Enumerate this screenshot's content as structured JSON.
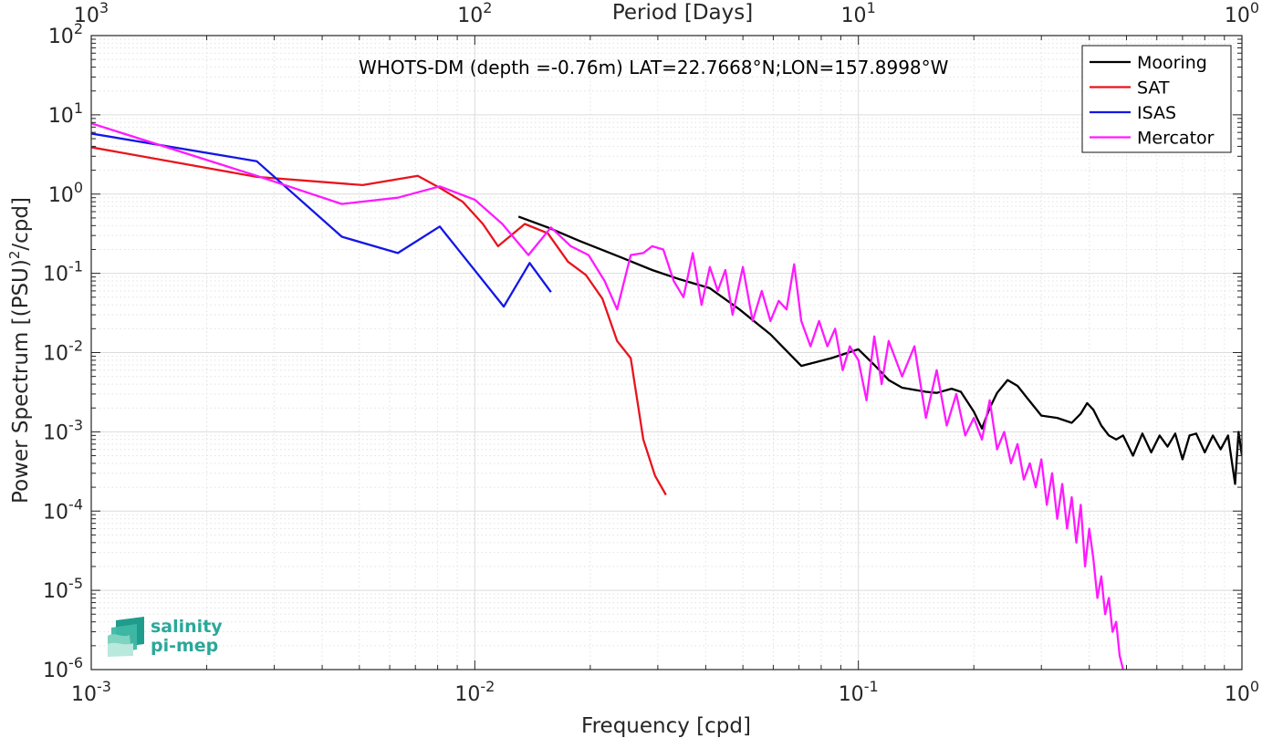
{
  "chart_data": {
    "type": "line",
    "xscale": "log",
    "yscale": "log",
    "xlim": [
      0.001,
      1
    ],
    "ylim": [
      1e-06,
      100
    ],
    "grid": true,
    "minor_grid": true,
    "xlabel": "Frequency [cpd]",
    "ylabel_main": "Power Spectrum [(PSU)",
    "ylabel_sup": "2",
    "ylabel_tail": "/cpd]",
    "top_xlabel": "Period [Days]",
    "annotation": "WHOTS-DM (depth =-0.76m) LAT=22.7668°N;LON=157.8998°W",
    "legend_position": "top-right",
    "x_ticks": [
      0.001,
      0.01,
      0.1,
      1
    ],
    "x_tick_base": [
      "10",
      "10",
      "10",
      "10"
    ],
    "x_tick_exp": [
      "-3",
      "-2",
      "-1",
      "0"
    ],
    "top_tick_base": [
      "10",
      "10",
      "10",
      "10"
    ],
    "top_tick_exp": [
      "3",
      "2",
      "1",
      "0"
    ],
    "y_ticks": [
      1e-06,
      1e-05,
      0.0001,
      0.001,
      0.01,
      0.1,
      1,
      10,
      100
    ],
    "y_tick_base": [
      "10",
      "10",
      "10",
      "10",
      "10",
      "10",
      "10",
      "10",
      "10"
    ],
    "y_tick_exp": [
      "-6",
      "-5",
      "-4",
      "-3",
      "-2",
      "-1",
      "0",
      "1",
      "2"
    ],
    "series": [
      {
        "name": "Mooring",
        "color": "#000000",
        "x": [
          0.013,
          0.0155,
          0.019,
          0.024,
          0.029,
          0.034,
          0.041,
          0.049,
          0.059,
          0.071,
          0.085,
          0.1,
          0.11,
          0.12,
          0.13,
          0.15,
          0.16,
          0.175,
          0.185,
          0.2,
          0.21,
          0.22,
          0.23,
          0.245,
          0.26,
          0.275,
          0.3,
          0.33,
          0.36,
          0.38,
          0.395,
          0.41,
          0.43,
          0.45,
          0.47,
          0.49,
          0.52,
          0.55,
          0.58,
          0.61,
          0.64,
          0.67,
          0.7,
          0.73,
          0.76,
          0.8,
          0.84,
          0.88,
          0.92,
          0.96,
          0.98,
          1.0
        ],
        "y": [
          0.52,
          0.38,
          0.25,
          0.16,
          0.11,
          0.085,
          0.065,
          0.035,
          0.017,
          0.0068,
          0.0085,
          0.011,
          0.007,
          0.0045,
          0.0036,
          0.0032,
          0.0031,
          0.0035,
          0.0032,
          0.0018,
          0.0011,
          0.002,
          0.0031,
          0.0045,
          0.0038,
          0.0027,
          0.0016,
          0.0015,
          0.0013,
          0.0017,
          0.0023,
          0.0019,
          0.0012,
          0.0009,
          0.0008,
          0.0009,
          0.0005,
          0.00095,
          0.00055,
          0.0009,
          0.00065,
          0.00095,
          0.00045,
          0.0009,
          0.00095,
          0.00055,
          0.0009,
          0.0006,
          0.0009,
          0.00022,
          0.001,
          0.0005
        ]
      },
      {
        "name": "SAT",
        "color": "#e8141d",
        "x": [
          0.001,
          0.0027,
          0.0051,
          0.0071,
          0.0081,
          0.0093,
          0.0105,
          0.0115,
          0.0135,
          0.0155,
          0.0175,
          0.0195,
          0.0215,
          0.0235,
          0.0255,
          0.0275,
          0.0295,
          0.0315
        ],
        "y": [
          3.9,
          1.65,
          1.3,
          1.7,
          1.2,
          0.8,
          0.42,
          0.22,
          0.42,
          0.32,
          0.14,
          0.095,
          0.048,
          0.014,
          0.0085,
          0.0008,
          0.00028,
          0.00016
        ]
      },
      {
        "name": "ISAS",
        "color": "#1416e6",
        "x": [
          0.001,
          0.0027,
          0.0045,
          0.0063,
          0.0081,
          0.0119,
          0.0139,
          0.0158
        ],
        "y": [
          5.8,
          2.6,
          0.29,
          0.18,
          0.39,
          0.038,
          0.135,
          0.058
        ]
      },
      {
        "name": "Mercator",
        "color": "#ff1aff",
        "x": [
          0.001,
          0.0027,
          0.0045,
          0.0063,
          0.0081,
          0.01,
          0.0118,
          0.0138,
          0.0158,
          0.0178,
          0.0198,
          0.0218,
          0.0235,
          0.0255,
          0.0275,
          0.029,
          0.031,
          0.033,
          0.035,
          0.037,
          0.039,
          0.041,
          0.043,
          0.045,
          0.047,
          0.05,
          0.053,
          0.056,
          0.059,
          0.062,
          0.065,
          0.068,
          0.071,
          0.075,
          0.079,
          0.083,
          0.087,
          0.091,
          0.095,
          0.1,
          0.105,
          0.11,
          0.115,
          0.12,
          0.13,
          0.14,
          0.15,
          0.16,
          0.17,
          0.18,
          0.19,
          0.2,
          0.21,
          0.22,
          0.23,
          0.24,
          0.25,
          0.26,
          0.27,
          0.28,
          0.29,
          0.3,
          0.31,
          0.32,
          0.33,
          0.34,
          0.35,
          0.36,
          0.37,
          0.38,
          0.39,
          0.4,
          0.41,
          0.42,
          0.43,
          0.44,
          0.45,
          0.46,
          0.47,
          0.48,
          0.49
        ],
        "y": [
          7.8,
          1.7,
          0.75,
          0.9,
          1.25,
          0.85,
          0.42,
          0.17,
          0.38,
          0.22,
          0.17,
          0.08,
          0.035,
          0.17,
          0.18,
          0.22,
          0.2,
          0.08,
          0.05,
          0.18,
          0.04,
          0.12,
          0.06,
          0.11,
          0.03,
          0.12,
          0.025,
          0.06,
          0.025,
          0.045,
          0.035,
          0.13,
          0.025,
          0.012,
          0.025,
          0.012,
          0.02,
          0.006,
          0.012,
          0.008,
          0.0025,
          0.016,
          0.004,
          0.014,
          0.005,
          0.012,
          0.0015,
          0.006,
          0.0012,
          0.003,
          0.0009,
          0.0015,
          0.0008,
          0.0025,
          0.0006,
          0.001,
          0.0004,
          0.0007,
          0.00025,
          0.0004,
          0.0002,
          0.00045,
          0.00012,
          0.0003,
          8e-05,
          0.00022,
          6e-05,
          0.00015,
          4e-05,
          0.00012,
          2e-05,
          6e-05,
          2.5e-05,
          8e-06,
          1.5e-05,
          5e-06,
          8e-06,
          3e-06,
          4e-06,
          1.5e-06,
          1e-06
        ]
      }
    ]
  },
  "logo": {
    "line1": "salinity",
    "line2": "pi-mep"
  }
}
